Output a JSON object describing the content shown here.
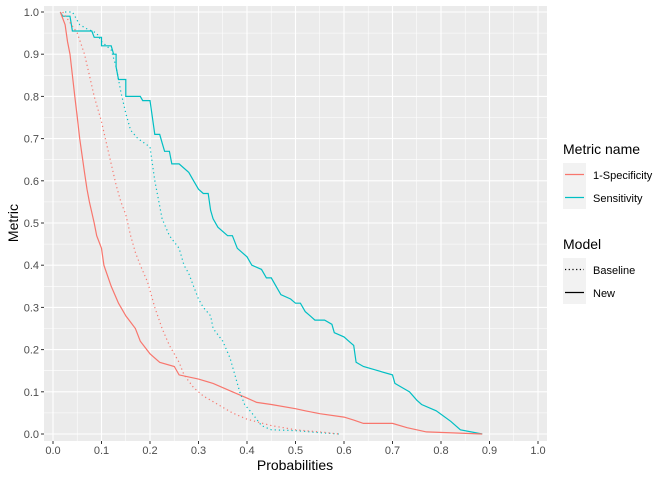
{
  "chart_data": {
    "type": "line",
    "xlabel": "Probabilities",
    "ylabel": "Metric",
    "xlim": [
      0,
      1
    ],
    "ylim": [
      0,
      1
    ],
    "xticks": [
      "0.0",
      "0.1",
      "0.2",
      "0.3",
      "0.4",
      "0.5",
      "0.6",
      "0.7",
      "0.8",
      "0.9",
      "1.0"
    ],
    "yticks": [
      "0.0",
      "0.1",
      "0.2",
      "0.3",
      "0.4",
      "0.5",
      "0.6",
      "0.7",
      "0.8",
      "0.9",
      "1.0"
    ],
    "grid": true,
    "legend_position": "right",
    "legend_color": {
      "title": "Metric name",
      "entries": [
        {
          "label": "1-Specificity",
          "color": "#F8766D"
        },
        {
          "label": "Sensitivity",
          "color": "#00BFC4"
        }
      ]
    },
    "legend_linetype": {
      "title": "Model",
      "entries": [
        {
          "label": "Baseline",
          "dash": "dotted"
        },
        {
          "label": "New",
          "dash": "solid"
        }
      ]
    },
    "series": [
      {
        "metric": "Sensitivity",
        "model": "New",
        "color": "#00BFC4",
        "dash": "solid",
        "points": [
          [
            0.015,
            1.0
          ],
          [
            0.02,
            0.99
          ],
          [
            0.035,
            0.99
          ],
          [
            0.04,
            0.955
          ],
          [
            0.08,
            0.955
          ],
          [
            0.085,
            0.94
          ],
          [
            0.1,
            0.94
          ],
          [
            0.1,
            0.92
          ],
          [
            0.12,
            0.92
          ],
          [
            0.125,
            0.9
          ],
          [
            0.13,
            0.9
          ],
          [
            0.13,
            0.87
          ],
          [
            0.135,
            0.84
          ],
          [
            0.15,
            0.84
          ],
          [
            0.15,
            0.8
          ],
          [
            0.18,
            0.8
          ],
          [
            0.185,
            0.79
          ],
          [
            0.2,
            0.79
          ],
          [
            0.205,
            0.75
          ],
          [
            0.21,
            0.71
          ],
          [
            0.22,
            0.71
          ],
          [
            0.225,
            0.69
          ],
          [
            0.23,
            0.67
          ],
          [
            0.24,
            0.67
          ],
          [
            0.245,
            0.64
          ],
          [
            0.26,
            0.64
          ],
          [
            0.28,
            0.62
          ],
          [
            0.29,
            0.6
          ],
          [
            0.3,
            0.58
          ],
          [
            0.31,
            0.57
          ],
          [
            0.32,
            0.57
          ],
          [
            0.325,
            0.53
          ],
          [
            0.33,
            0.51
          ],
          [
            0.34,
            0.49
          ],
          [
            0.36,
            0.47
          ],
          [
            0.37,
            0.47
          ],
          [
            0.38,
            0.44
          ],
          [
            0.4,
            0.42
          ],
          [
            0.41,
            0.4
          ],
          [
            0.43,
            0.39
          ],
          [
            0.44,
            0.37
          ],
          [
            0.45,
            0.37
          ],
          [
            0.46,
            0.35
          ],
          [
            0.47,
            0.33
          ],
          [
            0.49,
            0.32
          ],
          [
            0.5,
            0.31
          ],
          [
            0.51,
            0.31
          ],
          [
            0.52,
            0.29
          ],
          [
            0.53,
            0.28
          ],
          [
            0.54,
            0.27
          ],
          [
            0.56,
            0.27
          ],
          [
            0.575,
            0.26
          ],
          [
            0.58,
            0.24
          ],
          [
            0.6,
            0.23
          ],
          [
            0.61,
            0.22
          ],
          [
            0.62,
            0.21
          ],
          [
            0.625,
            0.17
          ],
          [
            0.64,
            0.16
          ],
          [
            0.67,
            0.15
          ],
          [
            0.7,
            0.14
          ],
          [
            0.705,
            0.12
          ],
          [
            0.72,
            0.11
          ],
          [
            0.735,
            0.1
          ],
          [
            0.75,
            0.08
          ],
          [
            0.76,
            0.07
          ],
          [
            0.79,
            0.055
          ],
          [
            0.82,
            0.03
          ],
          [
            0.84,
            0.01
          ],
          [
            0.885,
            0.0
          ]
        ]
      },
      {
        "metric": "1-Specificity",
        "model": "New",
        "color": "#F8766D",
        "dash": "solid",
        "points": [
          [
            0.015,
            1.0
          ],
          [
            0.025,
            0.97
          ],
          [
            0.03,
            0.93
          ],
          [
            0.035,
            0.9
          ],
          [
            0.04,
            0.85
          ],
          [
            0.045,
            0.8
          ],
          [
            0.05,
            0.75
          ],
          [
            0.055,
            0.7
          ],
          [
            0.06,
            0.66
          ],
          [
            0.065,
            0.62
          ],
          [
            0.07,
            0.58
          ],
          [
            0.075,
            0.55
          ],
          [
            0.085,
            0.5
          ],
          [
            0.09,
            0.47
          ],
          [
            0.1,
            0.44
          ],
          [
            0.105,
            0.4
          ],
          [
            0.12,
            0.35
          ],
          [
            0.135,
            0.31
          ],
          [
            0.15,
            0.28
          ],
          [
            0.17,
            0.25
          ],
          [
            0.18,
            0.22
          ],
          [
            0.2,
            0.19
          ],
          [
            0.22,
            0.17
          ],
          [
            0.25,
            0.16
          ],
          [
            0.26,
            0.14
          ],
          [
            0.3,
            0.13
          ],
          [
            0.33,
            0.12
          ],
          [
            0.37,
            0.1
          ],
          [
            0.4,
            0.085
          ],
          [
            0.42,
            0.075
          ],
          [
            0.45,
            0.07
          ],
          [
            0.5,
            0.06
          ],
          [
            0.52,
            0.055
          ],
          [
            0.55,
            0.048
          ],
          [
            0.6,
            0.04
          ],
          [
            0.62,
            0.033
          ],
          [
            0.64,
            0.025
          ],
          [
            0.7,
            0.025
          ],
          [
            0.73,
            0.015
          ],
          [
            0.77,
            0.005
          ],
          [
            0.885,
            0.0
          ]
        ]
      },
      {
        "metric": "Sensitivity",
        "model": "Baseline",
        "color": "#00BFC4",
        "dash": "dotted",
        "points": [
          [
            0.025,
            1.0
          ],
          [
            0.04,
            1.0
          ],
          [
            0.055,
            0.97
          ],
          [
            0.07,
            0.96
          ],
          [
            0.09,
            0.95
          ],
          [
            0.1,
            0.93
          ],
          [
            0.12,
            0.91
          ],
          [
            0.13,
            0.87
          ],
          [
            0.14,
            0.81
          ],
          [
            0.15,
            0.76
          ],
          [
            0.16,
            0.72
          ],
          [
            0.175,
            0.7
          ],
          [
            0.2,
            0.68
          ],
          [
            0.205,
            0.64
          ],
          [
            0.21,
            0.6
          ],
          [
            0.22,
            0.54
          ],
          [
            0.225,
            0.51
          ],
          [
            0.24,
            0.47
          ],
          [
            0.26,
            0.44
          ],
          [
            0.27,
            0.4
          ],
          [
            0.28,
            0.38
          ],
          [
            0.29,
            0.35
          ],
          [
            0.3,
            0.32
          ],
          [
            0.31,
            0.3
          ],
          [
            0.325,
            0.28
          ],
          [
            0.33,
            0.25
          ],
          [
            0.35,
            0.22
          ],
          [
            0.365,
            0.18
          ],
          [
            0.375,
            0.14
          ],
          [
            0.385,
            0.1
          ],
          [
            0.395,
            0.07
          ],
          [
            0.41,
            0.05
          ],
          [
            0.43,
            0.02
          ],
          [
            0.45,
            0.01
          ],
          [
            0.5,
            0.008
          ],
          [
            0.55,
            0.003
          ],
          [
            0.59,
            0.0
          ]
        ]
      },
      {
        "metric": "1-Specificity",
        "model": "Baseline",
        "color": "#F8766D",
        "dash": "dotted",
        "points": [
          [
            0.02,
            1.0
          ],
          [
            0.05,
            0.95
          ],
          [
            0.065,
            0.9
          ],
          [
            0.075,
            0.85
          ],
          [
            0.085,
            0.8
          ],
          [
            0.1,
            0.74
          ],
          [
            0.11,
            0.69
          ],
          [
            0.12,
            0.64
          ],
          [
            0.13,
            0.59
          ],
          [
            0.14,
            0.55
          ],
          [
            0.15,
            0.52
          ],
          [
            0.16,
            0.47
          ],
          [
            0.17,
            0.43
          ],
          [
            0.18,
            0.4
          ],
          [
            0.195,
            0.36
          ],
          [
            0.21,
            0.3
          ],
          [
            0.225,
            0.25
          ],
          [
            0.24,
            0.21
          ],
          [
            0.26,
            0.17
          ],
          [
            0.27,
            0.14
          ],
          [
            0.29,
            0.11
          ],
          [
            0.31,
            0.09
          ],
          [
            0.34,
            0.07
          ],
          [
            0.37,
            0.05
          ],
          [
            0.4,
            0.035
          ],
          [
            0.45,
            0.02
          ],
          [
            0.5,
            0.01
          ],
          [
            0.55,
            0.005
          ],
          [
            0.59,
            0.0
          ]
        ]
      }
    ]
  }
}
